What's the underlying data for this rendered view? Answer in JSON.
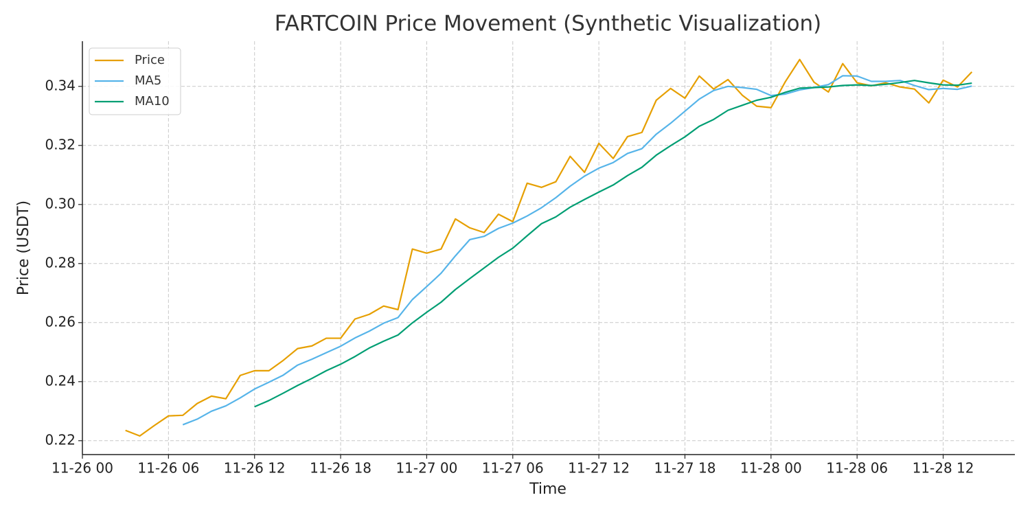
{
  "chart_data": {
    "type": "line",
    "title": "FARTCOIN Price Movement (Synthetic Visualization)",
    "xlabel": "Time",
    "ylabel": "Price (USDT)",
    "x": [
      "11-26 03",
      "11-26 04",
      "11-26 05",
      "11-26 06",
      "11-26 07",
      "11-26 08",
      "11-26 09",
      "11-26 10",
      "11-26 11",
      "11-26 12",
      "11-26 13",
      "11-26 14",
      "11-26 15",
      "11-26 16",
      "11-26 17",
      "11-26 18",
      "11-26 19",
      "11-26 20",
      "11-26 21",
      "11-26 22",
      "11-26 23",
      "11-27 00",
      "11-27 01",
      "11-27 02",
      "11-27 03",
      "11-27 04",
      "11-27 05",
      "11-27 06",
      "11-27 07",
      "11-27 08",
      "11-27 09",
      "11-27 10",
      "11-27 11",
      "11-27 12",
      "11-27 13",
      "11-27 14",
      "11-27 15",
      "11-27 16",
      "11-27 17",
      "11-27 18",
      "11-27 19",
      "11-27 20",
      "11-27 21",
      "11-27 22",
      "11-27 23",
      "11-28 00",
      "11-28 01",
      "11-28 02",
      "11-28 03",
      "11-28 04",
      "11-28 05",
      "11-28 06",
      "11-28 07",
      "11-28 08",
      "11-28 09",
      "11-28 10",
      "11-28 11",
      "11-28 12",
      "11-28 13",
      "11-28 14"
    ],
    "series": [
      {
        "name": "Price",
        "color": "#E69F00",
        "values": [
          0.2235,
          0.2216,
          0.2251,
          0.2284,
          0.2286,
          0.2326,
          0.2351,
          0.2342,
          0.2421,
          0.2437,
          0.2437,
          0.2472,
          0.2512,
          0.2521,
          0.2547,
          0.2547,
          0.2612,
          0.2628,
          0.2656,
          0.2644,
          0.2849,
          0.2835,
          0.2849,
          0.2951,
          0.2921,
          0.2905,
          0.2967,
          0.2942,
          0.3072,
          0.3058,
          0.3077,
          0.3163,
          0.3109,
          0.3207,
          0.3156,
          0.323,
          0.3244,
          0.3353,
          0.3393,
          0.336,
          0.3435,
          0.3391,
          0.3423,
          0.337,
          0.3333,
          0.3328,
          0.3416,
          0.3491,
          0.3414,
          0.3381,
          0.3477,
          0.3412,
          0.3402,
          0.3412,
          0.3398,
          0.3391,
          0.3344,
          0.3421,
          0.3398,
          0.3449
        ]
      },
      {
        "name": "MA5",
        "color": "#56B4E9",
        "values": [
          null,
          null,
          null,
          null,
          0.2254,
          0.2273,
          0.23,
          0.2318,
          0.2345,
          0.2375,
          0.2398,
          0.2422,
          0.2456,
          0.2476,
          0.2498,
          0.252,
          0.2548,
          0.2571,
          0.2598,
          0.2617,
          0.2678,
          0.2722,
          0.2767,
          0.2826,
          0.2881,
          0.2892,
          0.2919,
          0.2937,
          0.2961,
          0.2989,
          0.3023,
          0.3062,
          0.3096,
          0.3123,
          0.3142,
          0.3173,
          0.3189,
          0.3238,
          0.3275,
          0.3316,
          0.3357,
          0.3386,
          0.34,
          0.3396,
          0.339,
          0.3369,
          0.3374,
          0.3388,
          0.3396,
          0.3406,
          0.3436,
          0.3435,
          0.3417,
          0.3417,
          0.342,
          0.3403,
          0.3389,
          0.3393,
          0.339,
          0.3401
        ]
      },
      {
        "name": "MA10",
        "color": "#009E73",
        "values": [
          null,
          null,
          null,
          null,
          null,
          null,
          null,
          null,
          null,
          0.2315,
          0.2336,
          0.2361,
          0.2387,
          0.2411,
          0.2437,
          0.2459,
          0.2485,
          0.2514,
          0.2537,
          0.2558,
          0.2599,
          0.2635,
          0.2669,
          0.2712,
          0.2749,
          0.2785,
          0.2821,
          0.2852,
          0.2894,
          0.2935,
          0.2958,
          0.2991,
          0.3017,
          0.3042,
          0.3066,
          0.3098,
          0.3126,
          0.3167,
          0.3199,
          0.3229,
          0.3265,
          0.3288,
          0.3319,
          0.3336,
          0.3353,
          0.3363,
          0.338,
          0.3394,
          0.3396,
          0.3398,
          0.3403,
          0.3405,
          0.3403,
          0.3407,
          0.3413,
          0.342,
          0.3412,
          0.3405,
          0.3404,
          0.3411
        ]
      }
    ],
    "xlim": [
      "11-26 00",
      "11-28 17"
    ],
    "xticks": [
      "11-26 00",
      "11-26 06",
      "11-26 12",
      "11-26 18",
      "11-27 00",
      "11-27 06",
      "11-27 12",
      "11-27 18",
      "11-28 00",
      "11-28 06",
      "11-28 12"
    ],
    "ylim": [
      0.2153,
      0.3553
    ],
    "yticks": [
      0.22,
      0.24,
      0.26,
      0.28,
      {
        "value": 0.3,
        "label": "0.30"
      },
      0.32,
      0.34
    ],
    "grid": true,
    "legend": "upper left"
  }
}
